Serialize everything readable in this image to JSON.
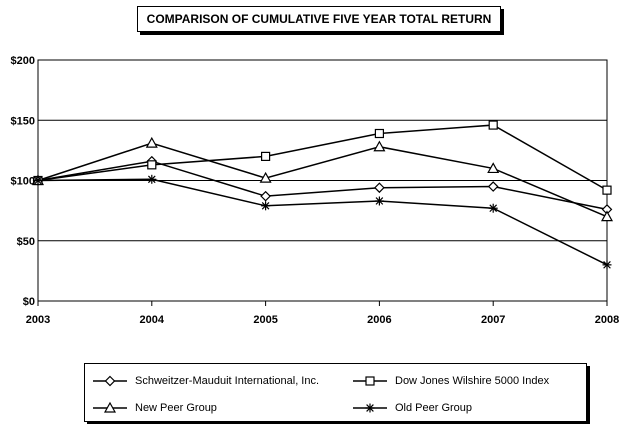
{
  "chart_data": {
    "type": "line",
    "title": "COMPARISON OF CUMULATIVE FIVE YEAR TOTAL RETURN",
    "xlabel": "",
    "ylabel": "",
    "categories": [
      "2003",
      "2004",
      "2005",
      "2006",
      "2007",
      "2008"
    ],
    "ylim": [
      0,
      200
    ],
    "yticks": [
      0,
      50,
      100,
      150,
      200
    ],
    "ytick_labels": [
      "$0",
      "$50",
      "$100",
      "$150",
      "$200"
    ],
    "grid": true,
    "legend_position": "bottom",
    "series": [
      {
        "name": "Schweitzer-Mauduit International, Inc.",
        "marker": "diamond",
        "values": [
          100,
          116,
          87,
          94,
          95,
          76
        ]
      },
      {
        "name": "Dow Jones Wilshire 5000 Index",
        "marker": "square",
        "values": [
          100,
          113,
          120,
          139,
          146,
          92
        ]
      },
      {
        "name": "New Peer Group",
        "marker": "triangle",
        "values": [
          100,
          131,
          102,
          128,
          110,
          70
        ]
      },
      {
        "name": "Old Peer Group",
        "marker": "asterisk",
        "values": [
          100,
          101,
          79,
          83,
          77,
          30
        ]
      }
    ]
  }
}
